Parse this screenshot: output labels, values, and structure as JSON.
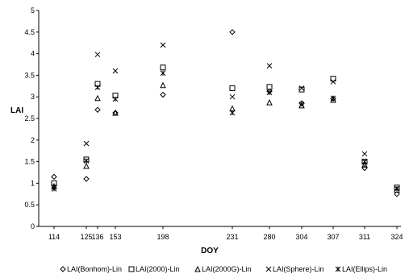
{
  "chart_data": {
    "type": "scatter",
    "categories": [
      "114",
      "125",
      "136",
      "153",
      "198",
      "231",
      "280",
      "304",
      "307",
      "311",
      "324"
    ],
    "x_tick_labels": [
      "114",
      "125",
      "136",
      "153",
      "198",
      "231",
      "280",
      "304",
      "307",
      "311",
      "324"
    ],
    "xlabel": "DOY",
    "ylabel": "LAI",
    "ylim": [
      0,
      5
    ],
    "y_ticks": [
      "0",
      "0.5",
      "1",
      "1.5",
      "2",
      "2.5",
      "3",
      "3.5",
      "4",
      "4.5",
      "5"
    ],
    "grid": false,
    "legend_position": "bottom",
    "series": [
      {
        "name": "LAI(Bonhom)-Lin",
        "marker": "diamond",
        "values": [
          1.15,
          1.1,
          2.7,
          2.63,
          3.05,
          4.5,
          3.13,
          2.85,
          2.96,
          1.35,
          0.75
        ]
      },
      {
        "name": "LAI(2000)-Lin",
        "marker": "square",
        "values": [
          1.0,
          1.55,
          3.3,
          3.03,
          3.68,
          3.2,
          3.23,
          3.17,
          3.42,
          1.5,
          0.9
        ]
      },
      {
        "name": "LAI(2000G)-Lin",
        "marker": "triangle",
        "values": [
          0.93,
          1.4,
          2.97,
          2.63,
          3.27,
          2.73,
          2.87,
          2.8,
          2.93,
          1.43,
          0.85
        ]
      },
      {
        "name": "LAI(Sphere)-Lin",
        "marker": "x",
        "values": [
          0.92,
          1.92,
          3.98,
          3.6,
          4.2,
          3.0,
          3.72,
          3.2,
          3.35,
          1.68,
          0.88
        ]
      },
      {
        "name": "LAI(Ellips)-Lin",
        "marker": "star",
        "values": [
          0.87,
          1.52,
          3.22,
          2.95,
          3.55,
          2.63,
          3.1,
          2.83,
          2.97,
          1.5,
          0.88
        ]
      }
    ]
  }
}
